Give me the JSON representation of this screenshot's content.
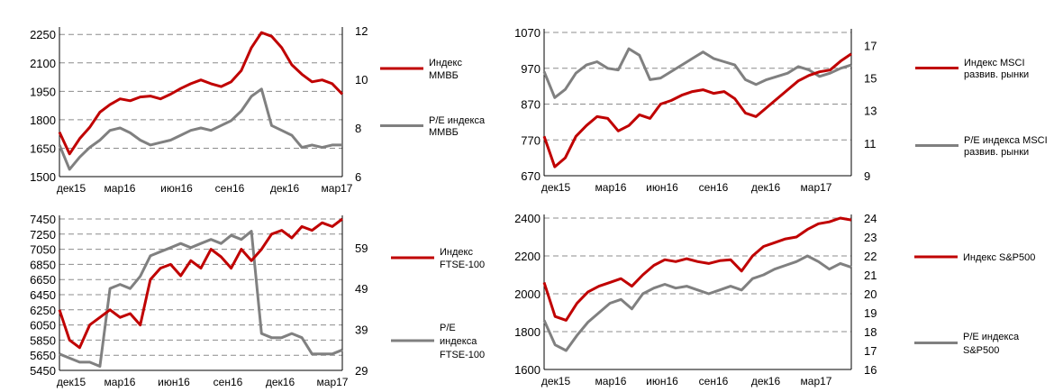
{
  "chart_data": [
    {
      "type": "line",
      "x_ticks": [
        "дек15",
        "мар16",
        "июн16",
        "сен16",
        "дек16",
        "мар17"
      ],
      "y_left_ticks": [
        "1500",
        "1650",
        "1800",
        "1950",
        "2100",
        "2250"
      ],
      "y_right_ticks": [
        "6",
        "8",
        "10",
        "12"
      ],
      "ylim_left": [
        1500,
        2270
      ],
      "ylim_right": [
        6,
        12
      ],
      "grid": true,
      "legend_position": "right",
      "series": [
        {
          "name": "Индекс ММВБ",
          "legend_lines": [
            "Индекс",
            "ММВБ"
          ],
          "color": "#c00000",
          "axis": "left",
          "values": [
            1735,
            1620,
            1700,
            1760,
            1840,
            1880,
            1910,
            1900,
            1920,
            1925,
            1910,
            1935,
            1965,
            1990,
            2010,
            1990,
            1975,
            2000,
            2060,
            2180,
            2260,
            2240,
            2180,
            2090,
            2040,
            2000,
            2010,
            1990,
            1935
          ]
        },
        {
          "name": "P/E индекса ММВБ",
          "legend_lines": [
            "P/E индекса",
            "ММВБ"
          ],
          "color": "#808080",
          "axis": "right",
          "values": [
            7.3,
            6.3,
            6.8,
            7.2,
            7.5,
            7.9,
            8.0,
            7.8,
            7.5,
            7.3,
            7.4,
            7.5,
            7.7,
            7.9,
            8.0,
            7.9,
            8.1,
            8.3,
            8.7,
            9.3,
            9.6,
            8.1,
            7.9,
            7.7,
            7.2,
            7.3,
            7.2,
            7.3,
            7.3
          ]
        }
      ]
    },
    {
      "type": "line",
      "x_ticks": [
        "дек15",
        "мар16",
        "июн16",
        "сен16",
        "дек16",
        "мар17"
      ],
      "y_left_ticks": [
        "670",
        "770",
        "870",
        "970",
        "1070"
      ],
      "y_right_ticks": [
        "9",
        "11",
        "13",
        "15",
        "17"
      ],
      "ylim_left": [
        670,
        1070
      ],
      "ylim_right": [
        9,
        17.8
      ],
      "grid": true,
      "legend_position": "right",
      "series": [
        {
          "name": "Индекс MSCI развив. рынки",
          "legend_lines": [
            "Индекс MSCI",
            "развив. рынки"
          ],
          "color": "#c00000",
          "axis": "left",
          "values": [
            780,
            695,
            720,
            780,
            810,
            835,
            830,
            795,
            810,
            840,
            830,
            870,
            880,
            895,
            905,
            910,
            900,
            905,
            885,
            845,
            835,
            860,
            885,
            910,
            935,
            950,
            960,
            965,
            990,
            1010
          ]
        },
        {
          "name": "P/E индекса MSCI развив. рынки",
          "legend_lines": [
            "P/E индекса MSCI",
            "развив. рынки"
          ],
          "color": "#808080",
          "axis": "right",
          "values": [
            15.4,
            13.8,
            14.3,
            15.3,
            15.8,
            16.0,
            15.6,
            15.5,
            16.8,
            16.4,
            14.9,
            15.0,
            15.4,
            15.8,
            16.2,
            16.6,
            16.2,
            16.0,
            15.8,
            14.9,
            14.6,
            14.9,
            15.1,
            15.3,
            15.7,
            15.5,
            15.1,
            15.3,
            15.6,
            15.8
          ]
        }
      ]
    },
    {
      "type": "line",
      "x_ticks": [
        "дек15",
        "мар16",
        "июн16",
        "сен16",
        "дек16",
        "мар17"
      ],
      "y_left_ticks": [
        "5450",
        "5650",
        "5850",
        "6050",
        "6250",
        "6450",
        "6650",
        "6850",
        "7050",
        "7250",
        "7450"
      ],
      "y_right_ticks": [
        "29",
        "39",
        "49",
        "59"
      ],
      "ylim_left": [
        5450,
        7450
      ],
      "ylim_right": [
        29,
        66
      ],
      "grid": true,
      "legend_position": "right",
      "series": [
        {
          "name": "Индекс FTSE-100",
          "legend_lines": [
            "Индекс",
            "FTSE-100"
          ],
          "color": "#c00000",
          "axis": "left",
          "values": [
            6250,
            5850,
            5750,
            6050,
            6150,
            6250,
            6150,
            6200,
            6050,
            6650,
            6800,
            6850,
            6700,
            6900,
            6800,
            7050,
            6950,
            6800,
            7050,
            6900,
            7050,
            7250,
            7300,
            7200,
            7350,
            7300,
            7400,
            7350,
            7450
          ]
        },
        {
          "name": "P/E индекса FTSE-100",
          "legend_lines": [
            "P/E",
            "индекса",
            "FTSE-100"
          ],
          "color": "#808080",
          "axis": "right",
          "values": [
            33,
            32,
            31,
            31,
            30,
            49,
            50,
            49,
            52,
            57,
            58,
            59,
            60,
            59,
            60,
            61,
            60,
            62,
            61,
            63,
            38,
            37,
            37,
            38,
            37,
            33,
            33,
            33,
            34
          ]
        }
      ]
    },
    {
      "type": "line",
      "x_ticks": [
        "дек15",
        "мар16",
        "июн16",
        "сен16",
        "дек16",
        "мар17"
      ],
      "y_left_ticks": [
        "1600",
        "1800",
        "2000",
        "2200",
        "2400"
      ],
      "y_right_ticks": [
        "16",
        "17",
        "18",
        "19",
        "20",
        "21",
        "22",
        "23",
        "24"
      ],
      "ylim_left": [
        1600,
        2400
      ],
      "ylim_right": [
        16,
        24
      ],
      "grid": true,
      "legend_position": "right",
      "series": [
        {
          "name": "Индекс S&P500",
          "legend_lines": [
            "Индекс S&P500"
          ],
          "color": "#c00000",
          "axis": "left",
          "values": [
            2060,
            1880,
            1860,
            1950,
            2010,
            2040,
            2060,
            2080,
            2040,
            2100,
            2150,
            2180,
            2170,
            2185,
            2170,
            2160,
            2175,
            2180,
            2120,
            2200,
            2250,
            2270,
            2290,
            2300,
            2340,
            2370,
            2380,
            2400,
            2390
          ]
        },
        {
          "name": "P/E индекса S&P500",
          "legend_lines": [
            "P/E индекса",
            "S&P500"
          ],
          "color": "#808080",
          "axis": "right",
          "values": [
            18.6,
            17.3,
            17.0,
            17.8,
            18.5,
            19.0,
            19.5,
            19.7,
            19.2,
            20.0,
            20.3,
            20.5,
            20.3,
            20.4,
            20.2,
            20.0,
            20.2,
            20.4,
            20.2,
            20.8,
            21.0,
            21.3,
            21.5,
            21.7,
            22.0,
            21.7,
            21.3,
            21.6,
            21.4
          ]
        }
      ]
    }
  ]
}
